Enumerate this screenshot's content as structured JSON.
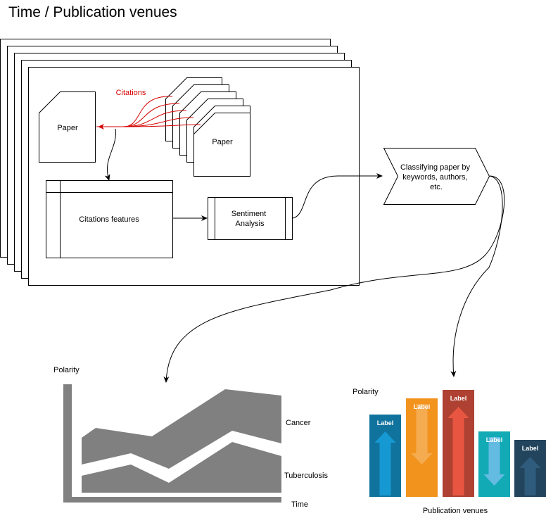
{
  "title": "Time / Publication venues",
  "diagram": {
    "paper_left": "Paper",
    "paper_right": "Paper",
    "citations_label": "Citations",
    "citation_features": "Citations features",
    "sentiment": [
      "Sentiment",
      "Analysis"
    ],
    "classifier": [
      "Classifying paper by",
      "keywords, authors,",
      "etc."
    ]
  },
  "area_chart": {
    "ylabel": "Polarity",
    "xlabel": "Time",
    "series": [
      "Cancer",
      "Tuberculosis"
    ],
    "fill_color": "#808080"
  },
  "bar_chart": {
    "ylabel": "Polarity",
    "xlabel": "Publication venues",
    "bar_label": "Label",
    "bars": [
      {
        "label": "Label",
        "color": "#10739e",
        "arrow_color": "#1699d3",
        "direction": "up"
      },
      {
        "label": "Label",
        "color": "#f2931e",
        "arrow_color": "#f5ab50",
        "direction": "down"
      },
      {
        "label": "Label",
        "color": "#ae4132",
        "arrow_color": "#e85642",
        "direction": "up"
      },
      {
        "label": "Label",
        "color": "#12aab5",
        "arrow_color": "#64bbe2",
        "direction": "down"
      },
      {
        "label": "Label",
        "color": "#23445d",
        "arrow_color": "#2f5b7c",
        "direction": "up"
      }
    ]
  }
}
